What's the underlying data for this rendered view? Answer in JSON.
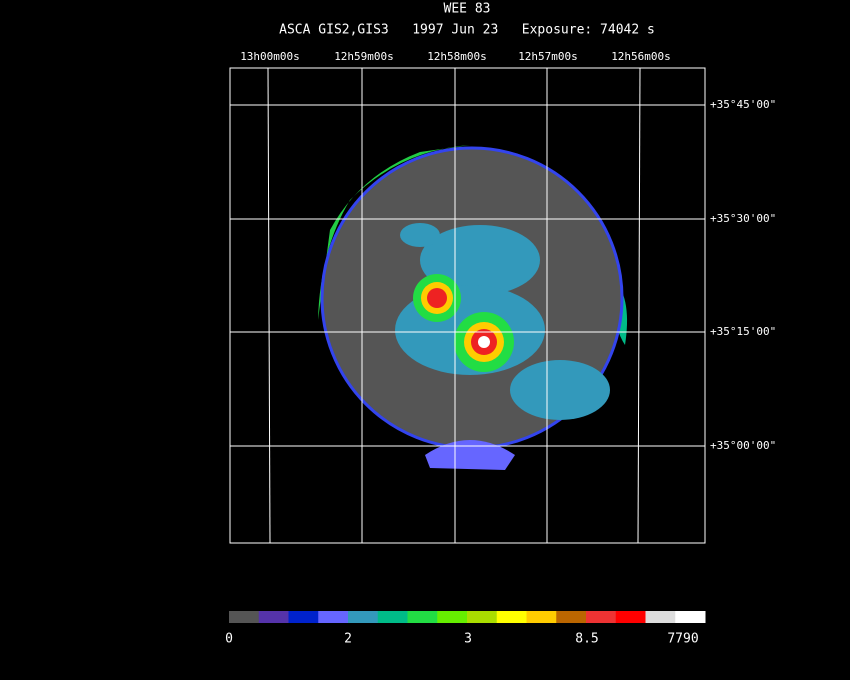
{
  "header": {
    "title": "WEE 83",
    "subtitle": "ASCA GIS2,GIS3   1997 Jun 23   Exposure: 74042 s"
  },
  "ra_labels": [
    "13h00m00s",
    "12h59m00s",
    "12h58m00s",
    "12h57m00s",
    "12h56m00s"
  ],
  "dec_labels": [
    "+35°45'00\"",
    "+35°30'00\"",
    "+35°15'00\"",
    "+35°00'00\""
  ],
  "colorbar_labels": [
    "0",
    "2",
    "3",
    "8.5",
    "7790"
  ]
}
